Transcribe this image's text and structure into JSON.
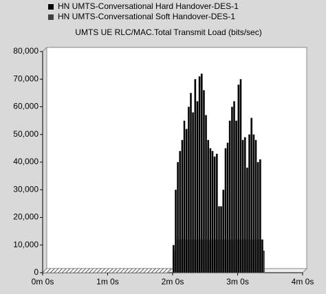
{
  "chart_data": {
    "type": "bar",
    "title": "UMTS UE RLC/MAC.Total Transmit Load (bits/sec)",
    "x": [
      120,
      122,
      124,
      126,
      128,
      130,
      132,
      134,
      136,
      138,
      140,
      142,
      144,
      146,
      148,
      150,
      152,
      154,
      156,
      158,
      160,
      162,
      164,
      166,
      168,
      170,
      172,
      174,
      176,
      178,
      180,
      182,
      184,
      186,
      188,
      190,
      192,
      194,
      196,
      198,
      200,
      202
    ],
    "series": [
      {
        "name": "HN UMTS-Conversational Hard Handover-DES-1",
        "color": "#000000",
        "values": [
          10000,
          30000,
          40000,
          44000,
          48000,
          55000,
          52000,
          60000,
          65000,
          58000,
          70000,
          62000,
          71000,
          72000,
          66000,
          57000,
          48000,
          45000,
          44000,
          42000,
          43000,
          24000,
          24000,
          30000,
          45000,
          47000,
          55000,
          60000,
          62000,
          55000,
          68000,
          70000,
          48000,
          49000,
          38000,
          50000,
          56000,
          50000,
          48000,
          40000,
          41000,
          12000
        ]
      },
      {
        "name": "HN UMTS-Conversational Soft Handover-DES-1",
        "color": "#404040",
        "values": [
          8000,
          12000,
          12000,
          12000,
          12000,
          12000,
          12000,
          12000,
          12000,
          12000,
          12000,
          12000,
          12000,
          12000,
          12000,
          12000,
          12000,
          12000,
          12000,
          12000,
          12000,
          12000,
          12000,
          12000,
          12000,
          12000,
          12000,
          12000,
          12000,
          12000,
          12000,
          12000,
          12000,
          12000,
          12000,
          12000,
          12000,
          12000,
          12000,
          12000,
          12000,
          8000
        ]
      }
    ],
    "xlim": [
      0,
      240
    ],
    "xticks": [
      {
        "value": 0,
        "label": "0m 0s"
      },
      {
        "value": 60,
        "label": "1m 0s"
      },
      {
        "value": 120,
        "label": "2m 0s"
      },
      {
        "value": 180,
        "label": "3m 0s"
      },
      {
        "value": 240,
        "label": "4m 0s"
      }
    ],
    "ylim": [
      0,
      80000
    ],
    "yticks": [
      0,
      {
        "value": 10000,
        "label": "10,000"
      },
      {
        "value": 20000,
        "label": "20,000"
      },
      {
        "value": 30000,
        "label": "30,000"
      },
      {
        "value": 40000,
        "label": "40,000"
      },
      {
        "value": 50000,
        "label": "50,000"
      },
      {
        "value": 60000,
        "label": "60,000"
      },
      {
        "value": 70000,
        "label": "70,000"
      },
      {
        "value": 80000,
        "label": "80,000"
      }
    ]
  }
}
